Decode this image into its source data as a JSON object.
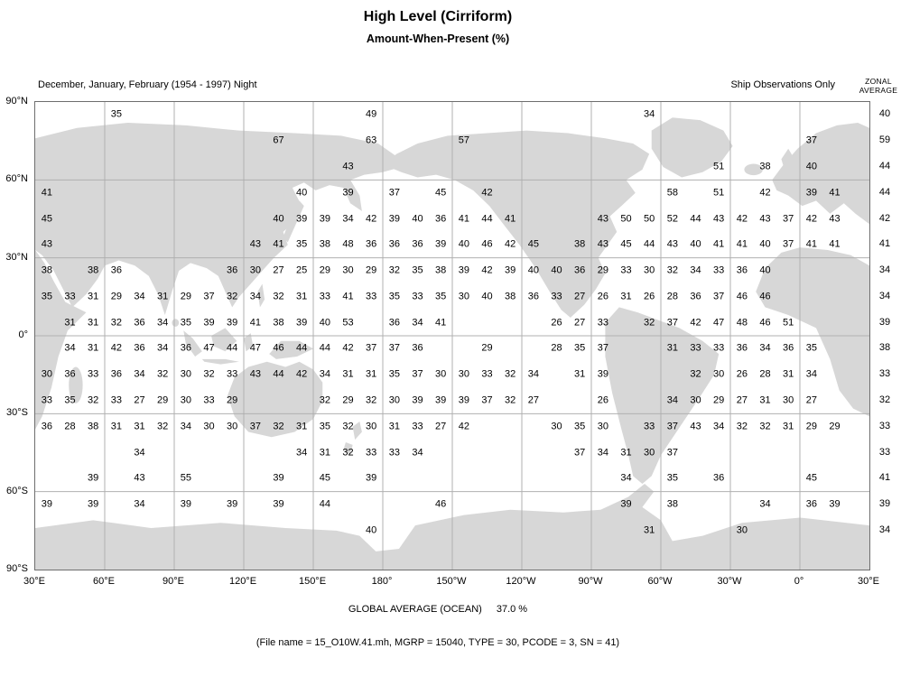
{
  "header": {
    "title": "High Level (Cirriform)",
    "subtitle": "Amount-When-Present (%)",
    "season_label": "December, January, February (1954 - 1997) Night",
    "source_label": "Ship Observations Only",
    "zonal_header_line1": "ZONAL",
    "zonal_header_line2": "AVERAGE"
  },
  "footer": {
    "global_average_label": "GLOBAL AVERAGE (OCEAN)",
    "global_average_value": "37.0 %",
    "file_info": "(File name = 15_O10W.41.mh, MGRP = 15040, TYPE = 30, PCODE = 3, SN = 41)"
  },
  "colors": {
    "land": "#d7d7d7",
    "grid": "#b0b0b0",
    "border": "#6e6e6e",
    "text": "#000000",
    "background": "#ffffff"
  },
  "chart_data": {
    "type": "heatmap",
    "title": "High Level (Cirriform)",
    "subtitle": "Amount-When-Present (%)",
    "units": "%",
    "description": "10-degree lat/lon gridded cloud amount-when-present values plotted over a Pacific-centered world map, with zonal averages at right",
    "lat_axis": [
      "90°N",
      "60°N",
      "30°N",
      "0°",
      "30°S",
      "60°S",
      "90°S"
    ],
    "lon_axis": [
      "30°E",
      "60°E",
      "90°E",
      "120°E",
      "150°E",
      "180°",
      "150°W",
      "120°W",
      "90°W",
      "60°W",
      "30°W",
      "0°",
      "30°E"
    ],
    "grid": {
      "lon_start": "30E eastward",
      "cell_deg": 10,
      "n_cols": 36,
      "n_rows": 18
    },
    "global_average_ocean": 37.0,
    "rows": [
      {
        "lat": "85N",
        "zonal_avg": 40,
        "cells": {
          "3": 35,
          "14": 49,
          "26": 34
        }
      },
      {
        "lat": "75N",
        "zonal_avg": 59,
        "cells": {
          "10": 67,
          "14": 63,
          "18": 57,
          "33": 37
        }
      },
      {
        "lat": "65N",
        "zonal_avg": 44,
        "cells": {
          "13": 43,
          "29": 51,
          "31": 38,
          "33": 40
        }
      },
      {
        "lat": "55N",
        "zonal_avg": 44,
        "cells": {
          "0": 41,
          "11": 40,
          "13": 39,
          "15": 37,
          "17": 45,
          "19": 42,
          "27": 58,
          "29": 51,
          "31": 42,
          "33": 39,
          "34": 41
        }
      },
      {
        "lat": "45N",
        "zonal_avg": 42,
        "cells": {
          "0": 45,
          "10": 40,
          "11": 39,
          "12": 39,
          "13": 34,
          "14": 42,
          "15": 39,
          "16": 40,
          "17": 36,
          "18": 41,
          "19": 44,
          "20": 41,
          "24": 43,
          "25": 50,
          "26": 50,
          "27": 52,
          "28": 44,
          "29": 43,
          "30": 42,
          "31": 43,
          "32": 37,
          "33": 42,
          "34": 43
        }
      },
      {
        "lat": "35N",
        "zonal_avg": 41,
        "cells": {
          "0": 43,
          "9": 43,
          "10": 41,
          "11": 35,
          "12": 38,
          "13": 48,
          "14": 36,
          "15": 36,
          "16": 36,
          "17": 39,
          "18": 40,
          "19": 46,
          "20": 42,
          "21": 45,
          "23": 38,
          "24": 43,
          "25": 45,
          "26": 44,
          "27": 43,
          "28": 40,
          "29": 41,
          "30": 41,
          "31": 40,
          "32": 37,
          "33": 41,
          "34": 41
        }
      },
      {
        "lat": "25N",
        "zonal_avg": 34,
        "cells": {
          "0": 38,
          "2": 38,
          "3": 36,
          "8": 36,
          "9": 30,
          "10": 27,
          "11": 25,
          "12": 29,
          "13": 30,
          "14": 29,
          "15": 32,
          "16": 35,
          "17": 38,
          "18": 39,
          "19": 42,
          "20": 39,
          "21": 40,
          "22": 40,
          "23": 36,
          "24": 29,
          "25": 33,
          "26": 30,
          "27": 32,
          "28": 34,
          "29": 33,
          "30": 36,
          "31": 40
        }
      },
      {
        "lat": "15N",
        "zonal_avg": 34,
        "cells": {
          "0": 35,
          "1": 33,
          "2": 31,
          "3": 29,
          "4": 34,
          "5": 31,
          "6": 29,
          "7": 37,
          "8": 32,
          "9": 34,
          "10": 32,
          "11": 31,
          "12": 33,
          "13": 41,
          "14": 33,
          "15": 35,
          "16": 33,
          "17": 35,
          "18": 30,
          "19": 40,
          "20": 38,
          "21": 36,
          "22": 33,
          "23": 27,
          "24": 26,
          "25": 31,
          "26": 26,
          "27": 28,
          "28": 36,
          "29": 37,
          "30": 46,
          "31": 46
        }
      },
      {
        "lat": "5N",
        "zonal_avg": 39,
        "cells": {
          "1": 31,
          "2": 31,
          "3": 32,
          "4": 36,
          "5": 34,
          "6": 35,
          "7": 39,
          "8": 39,
          "9": 41,
          "10": 38,
          "11": 39,
          "12": 40,
          "13": 53,
          "15": 36,
          "16": 34,
          "17": 41,
          "22": 26,
          "23": 27,
          "24": 33,
          "26": 32,
          "27": 37,
          "28": 42,
          "29": 47,
          "30": 48,
          "31": 46,
          "32": 51
        }
      },
      {
        "lat": "5S",
        "zonal_avg": 38,
        "cells": {
          "1": 34,
          "2": 31,
          "3": 42,
          "4": 36,
          "5": 34,
          "6": 36,
          "7": 47,
          "8": 44,
          "9": 47,
          "10": 46,
          "11": 44,
          "12": 44,
          "13": 42,
          "14": 37,
          "15": 37,
          "16": 36,
          "19": 29,
          "22": 28,
          "23": 35,
          "24": 37,
          "27": 31,
          "28": 33,
          "29": 33,
          "30": 36,
          "31": 34,
          "32": 36,
          "33": 35
        }
      },
      {
        "lat": "15S",
        "zonal_avg": 33,
        "cells": {
          "0": 30,
          "1": 36,
          "2": 33,
          "3": 36,
          "4": 34,
          "5": 32,
          "6": 30,
          "7": 32,
          "8": 33,
          "9": 43,
          "10": 44,
          "11": 42,
          "12": 34,
          "13": 31,
          "14": 31,
          "15": 35,
          "16": 37,
          "17": 30,
          "18": 30,
          "19": 33,
          "20": 32,
          "21": 34,
          "23": 31,
          "24": 39,
          "28": 32,
          "29": 30,
          "30": 26,
          "31": 28,
          "32": 31,
          "33": 34
        }
      },
      {
        "lat": "25S",
        "zonal_avg": 32,
        "cells": {
          "0": 33,
          "1": 35,
          "2": 32,
          "3": 33,
          "4": 27,
          "5": 29,
          "6": 30,
          "7": 33,
          "8": 29,
          "12": 32,
          "13": 29,
          "14": 32,
          "15": 30,
          "16": 39,
          "17": 39,
          "18": 39,
          "19": 37,
          "20": 32,
          "21": 27,
          "24": 26,
          "27": 34,
          "28": 30,
          "29": 29,
          "30": 27,
          "31": 31,
          "32": 30,
          "33": 27
        }
      },
      {
        "lat": "35S",
        "zonal_avg": 33,
        "cells": {
          "0": 36,
          "1": 28,
          "2": 38,
          "3": 31,
          "4": 31,
          "5": 32,
          "6": 34,
          "7": 30,
          "8": 30,
          "9": 37,
          "10": 32,
          "11": 31,
          "12": 35,
          "13": 32,
          "14": 30,
          "15": 31,
          "16": 33,
          "17": 27,
          "18": 42,
          "22": 30,
          "23": 35,
          "24": 30,
          "26": 33,
          "27": 37,
          "28": 43,
          "29": 34,
          "30": 32,
          "31": 32,
          "32": 31,
          "33": 29,
          "34": 29
        }
      },
      {
        "lat": "45S",
        "zonal_avg": 33,
        "cells": {
          "4": 34,
          "11": 34,
          "12": 31,
          "13": 32,
          "14": 33,
          "15": 33,
          "16": 34,
          "23": 37,
          "24": 34,
          "25": 31,
          "26": 30,
          "27": 37
        }
      },
      {
        "lat": "55S",
        "zonal_avg": 41,
        "cells": {
          "2": 39,
          "4": 43,
          "6": 55,
          "10": 39,
          "12": 45,
          "14": 39,
          "25": 34,
          "27": 35,
          "29": 36,
          "33": 45
        }
      },
      {
        "lat": "65S",
        "zonal_avg": 39,
        "cells": {
          "0": 39,
          "2": 39,
          "4": 34,
          "6": 39,
          "8": 39,
          "10": 39,
          "12": 44,
          "17": 46,
          "25": 39,
          "27": 38,
          "31": 34,
          "33": 36,
          "34": 39
        }
      },
      {
        "lat": "75S",
        "zonal_avg": 34,
        "cells": {
          "14": 40,
          "26": 31,
          "30": 30
        }
      }
    ]
  }
}
